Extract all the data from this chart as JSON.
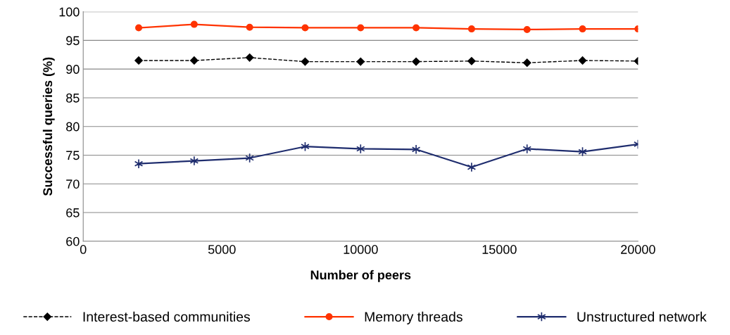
{
  "chart_data": {
    "type": "line",
    "xlabel": "Number of peers",
    "ylabel": "Successful queries (%)",
    "x": [
      2000,
      4000,
      6000,
      8000,
      10000,
      12000,
      14000,
      16000,
      18000,
      20000
    ],
    "series": [
      {
        "name": "Interest-based communities",
        "color": "#000000",
        "marker": "diamond",
        "line_style": "dashed",
        "values": [
          91.5,
          91.5,
          92.0,
          91.3,
          91.3,
          91.3,
          91.4,
          91.1,
          91.5,
          91.4
        ]
      },
      {
        "name": "Memory threads",
        "color": "#ff3300",
        "marker": "circle",
        "line_style": "solid",
        "values": [
          97.2,
          97.8,
          97.3,
          97.2,
          97.2,
          97.2,
          97.0,
          96.9,
          97.0,
          97.0
        ]
      },
      {
        "name": "Unstructured network",
        "color": "#1f2d6e",
        "marker": "cross",
        "line_style": "solid",
        "values": [
          73.5,
          74.0,
          74.5,
          76.5,
          76.1,
          76.0,
          72.9,
          76.1,
          75.6,
          76.9
        ]
      }
    ],
    "xlim": [
      0,
      20000
    ],
    "xticks": [
      0,
      5000,
      10000,
      15000,
      20000
    ],
    "ylim": [
      60,
      100
    ],
    "yticks": [
      60,
      65,
      70,
      75,
      80,
      85,
      90,
      95,
      100
    ],
    "grid": "y",
    "legend": "bottom"
  }
}
